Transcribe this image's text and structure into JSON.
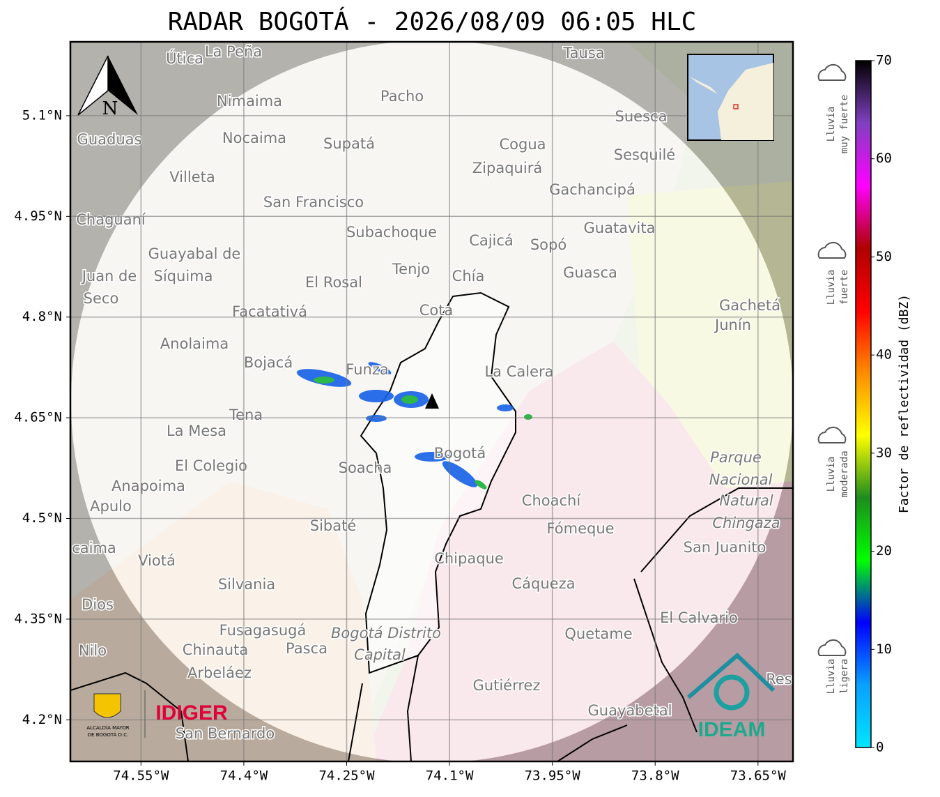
{
  "header": {
    "title": "RADAR BOGOTÁ - 2026/08/09 06:05 HLC"
  },
  "map": {
    "type": "map",
    "xlim": [
      -74.653,
      -73.599
    ],
    "ylim": [
      4.138,
      5.21
    ],
    "xticks": [
      {
        "value": -74.55,
        "label": "74.55°W"
      },
      {
        "value": -74.4,
        "label": "74.4°W"
      },
      {
        "value": -74.25,
        "label": "74.25°W"
      },
      {
        "value": -74.1,
        "label": "74.1°W"
      },
      {
        "value": -73.95,
        "label": "73.95°W"
      },
      {
        "value": -73.8,
        "label": "73.8°W"
      },
      {
        "value": -73.65,
        "label": "73.65°W"
      }
    ],
    "yticks": [
      {
        "value": 5.1,
        "label": "5.1°N"
      },
      {
        "value": 4.95,
        "label": "4.95°N"
      },
      {
        "value": 4.8,
        "label": "4.8°N"
      },
      {
        "value": 4.65,
        "label": "4.65°N"
      },
      {
        "value": 4.5,
        "label": "4.5°N"
      },
      {
        "value": 4.35,
        "label": "4.35°N"
      },
      {
        "value": 4.2,
        "label": "4.2°N"
      }
    ],
    "grid": true,
    "compass": "N",
    "places": [
      "Útica",
      "La Peña",
      "Tausa",
      "Pacho",
      "Nimaima",
      "Suesca",
      "Guaduas",
      "Nocaima",
      "Supatá",
      "Cogua",
      "Sesquilé",
      "Zipaquirá",
      "Villeta",
      "Gachancipá",
      "San Francisco",
      "Chaguaní",
      "Guatavita",
      "Subachoque",
      "Cajicá",
      "Sopó",
      "Guayabal de",
      "Síquima",
      "Tenjo",
      "Guasca",
      "Juan de",
      "Chía",
      "El Rosal",
      "Seco",
      "Gachetá",
      "Facatativá",
      "Cota",
      "Junín",
      "Anolaima",
      "Bojacá",
      "Funza",
      "La Calera",
      "Tena",
      "La Mesa",
      "Bogotá",
      "Parque",
      "El Colegio",
      "Soacha",
      "Nacional",
      "Anapoima",
      "Apulo",
      "Choachí",
      "Natural",
      "Chingaza",
      "Sibaté",
      "Fómeque",
      "San Juanito",
      "caima",
      "Viotá",
      "Chipaque",
      "Silvania",
      "Cáqueza",
      "Dios",
      "El Calvario",
      "Fusagasugá",
      "Bogotá Distrito",
      "Quetame",
      "Nilo",
      "Chinauta",
      "Pasca",
      "Capital",
      "Arbeláez",
      "Gutiérrez",
      "Res",
      "Guayabetal",
      "San Bernardo"
    ]
  },
  "colorbar": {
    "label": "Factor de reflectividad (dBZ)",
    "lim": [
      0,
      70
    ],
    "ticks": [
      0,
      10,
      20,
      30,
      40,
      50,
      60,
      70
    ],
    "colors": [
      "#00e5ff",
      "#0aa0ff",
      "#0000ff",
      "#00ff00",
      "#1e8c1e",
      "#ffff00",
      "#ff8c00",
      "#ff0000",
      "#b00000",
      "#ff00ff",
      "#8040c0",
      "#000000"
    ]
  },
  "legend": [
    {
      "line1": "Lluvia",
      "line2": "muy fuerte"
    },
    {
      "line1": "Lluvia",
      "line2": "fuerte"
    },
    {
      "line1": "Lluvia",
      "line2": "moderada"
    },
    {
      "line1": "Lluvia",
      "line2": "ligera"
    }
  ],
  "logos": {
    "idiger": "IDIGER",
    "alcaldia1": "ALCALDÍA MAYOR",
    "alcaldia2": "DE BOGOTÁ D.C.",
    "ideam": "IDEAM"
  }
}
